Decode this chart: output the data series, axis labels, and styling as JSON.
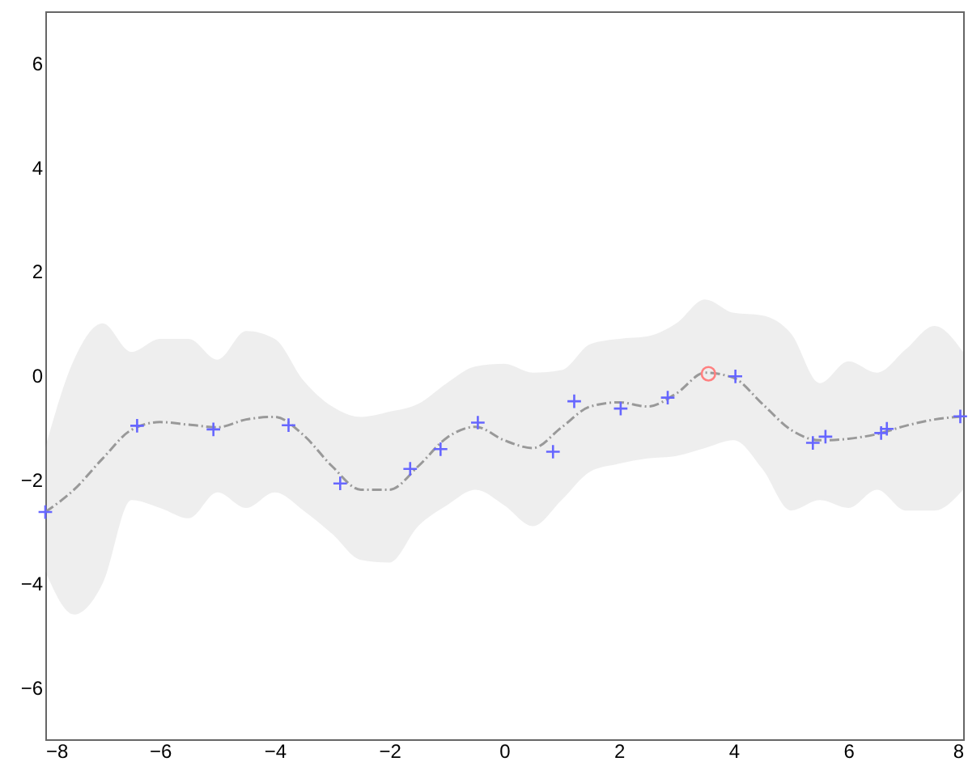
{
  "chart_data": {
    "type": "line",
    "xlim": [
      -8,
      8
    ],
    "ylim": [
      -7,
      7
    ],
    "xticks": [
      -8,
      -6,
      -4,
      -2,
      0,
      2,
      4,
      6,
      8
    ],
    "yticks": [
      -6,
      -4,
      -2,
      0,
      2,
      4,
      6
    ],
    "grid": false,
    "series": [
      {
        "color": "#999999",
        "line_style": "dashed",
        "marker": "none",
        "x": [
          -8,
          -7.5,
          -7,
          -6.5,
          -6,
          -5.5,
          -5,
          -4.5,
          -4,
          -3.5,
          -3,
          -2.5,
          -2,
          -1.5,
          -1,
          -0.5,
          0,
          0.5,
          1,
          1.5,
          2,
          2.5,
          3,
          3.5,
          4,
          4.5,
          5,
          5.5,
          6,
          6.5,
          7,
          7.5,
          8
        ],
        "values": [
          -2.63,
          -2.2,
          -1.6,
          -1.05,
          -0.9,
          -0.95,
          -1.0,
          -0.85,
          -0.8,
          -1.15,
          -1.75,
          -2.2,
          -2.2,
          -1.75,
          -1.2,
          -0.99,
          -1.25,
          -1.4,
          -1.0,
          -0.6,
          -0.52,
          -0.6,
          -0.35,
          0.05,
          -0.05,
          -0.55,
          -1.05,
          -1.25,
          -1.22,
          -1.13,
          -0.97,
          -0.85,
          -0.79
        ],
        "lower": [
          -3.77,
          -4.6,
          -4.0,
          -2.4,
          -2.55,
          -2.75,
          -2.25,
          -2.55,
          -2.25,
          -2.6,
          -3.05,
          -3.55,
          -3.6,
          -2.9,
          -2.5,
          -2.2,
          -2.5,
          -2.9,
          -2.4,
          -1.85,
          -1.7,
          -1.6,
          -1.55,
          -1.4,
          -1.25,
          -1.8,
          -2.6,
          -2.4,
          -2.55,
          -2.2,
          -2.6,
          -2.6,
          -2.2
        ],
        "upper": [
          -1.39,
          0.3,
          1.0,
          0.45,
          0.7,
          0.7,
          0.3,
          0.85,
          0.7,
          -0.1,
          -0.6,
          -0.8,
          -0.7,
          -0.55,
          -0.15,
          0.17,
          0.22,
          0.05,
          0.1,
          0.6,
          0.7,
          0.75,
          1.0,
          1.46,
          1.2,
          1.15,
          0.8,
          -0.15,
          0.27,
          0.05,
          0.5,
          0.95,
          0.45
        ]
      },
      {
        "type": "scatter",
        "color": "#6666ff",
        "marker": "cross",
        "x": [
          -8.0,
          -6.4,
          -5.07,
          -3.76,
          -2.86,
          -1.64,
          -1.11,
          -0.46,
          0.85,
          1.22,
          2.03,
          2.85,
          4.03,
          5.38,
          5.6,
          6.57,
          6.67,
          7.95
        ],
        "values": [
          -2.63,
          -0.97,
          -1.04,
          -0.96,
          -2.08,
          -1.8,
          -1.42,
          -0.91,
          -1.47,
          -0.5,
          -0.64,
          -0.43,
          -0.02,
          -1.3,
          -1.18,
          -1.11,
          -1.03,
          -0.79
        ]
      },
      {
        "type": "scatter",
        "color": "#ff8080",
        "marker": "circle",
        "x": [
          3.56
        ],
        "values": [
          0.03
        ]
      }
    ]
  }
}
